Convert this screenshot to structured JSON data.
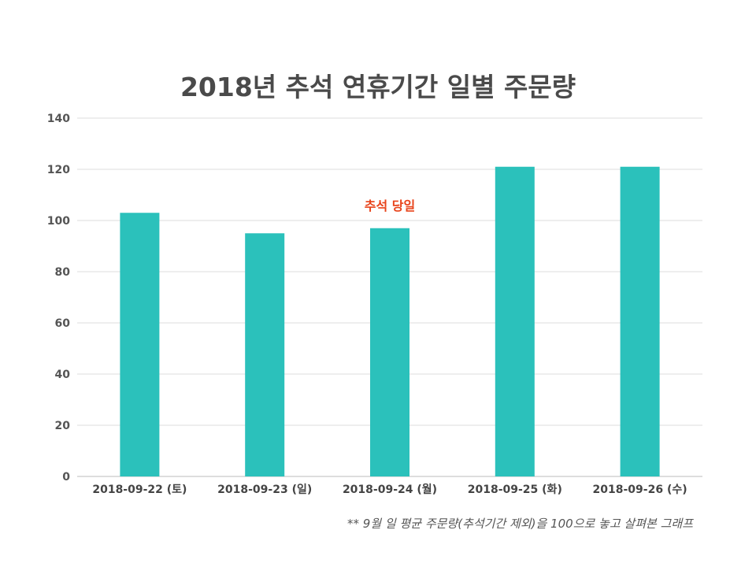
{
  "chart_data": {
    "type": "bar",
    "title": "2018년 추석 연휴기간 일별 주문량",
    "categories": [
      "2018-09-22 (토)",
      "2018-09-23 (일)",
      "2018-09-24 (월)",
      "2018-09-25 (화)",
      "2018-09-26 (수)"
    ],
    "values": [
      103,
      95,
      97,
      121,
      121
    ],
    "ylim": [
      0,
      140
    ],
    "yticks": [
      0,
      20,
      40,
      60,
      80,
      100,
      120,
      140
    ],
    "grid": true,
    "annotations": [
      {
        "category": "2018-09-24 (월)",
        "text": "추석 당일",
        "color": "#e8431a"
      }
    ],
    "footnote": "** 9월 일 평균 주문량(추석기간 제외)을 100으로 놓고 살펴본 그래프",
    "colors": {
      "bar": "#2bc1bb",
      "grid": "#dddddd",
      "axis_text": "#555555"
    }
  }
}
